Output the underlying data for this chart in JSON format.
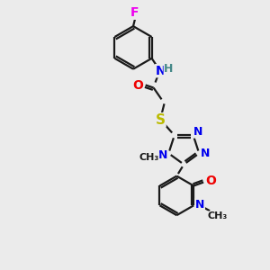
{
  "background_color": "#ebebeb",
  "bond_color": "#1a1a1a",
  "bond_width": 1.6,
  "atom_colors": {
    "F": "#ee00ee",
    "N": "#0000ee",
    "O": "#ee0000",
    "S": "#bbbb00",
    "H": "#448888",
    "C": "#1a1a1a"
  },
  "font_size": 9,
  "figsize": [
    3.0,
    3.0
  ],
  "dpi": 100
}
